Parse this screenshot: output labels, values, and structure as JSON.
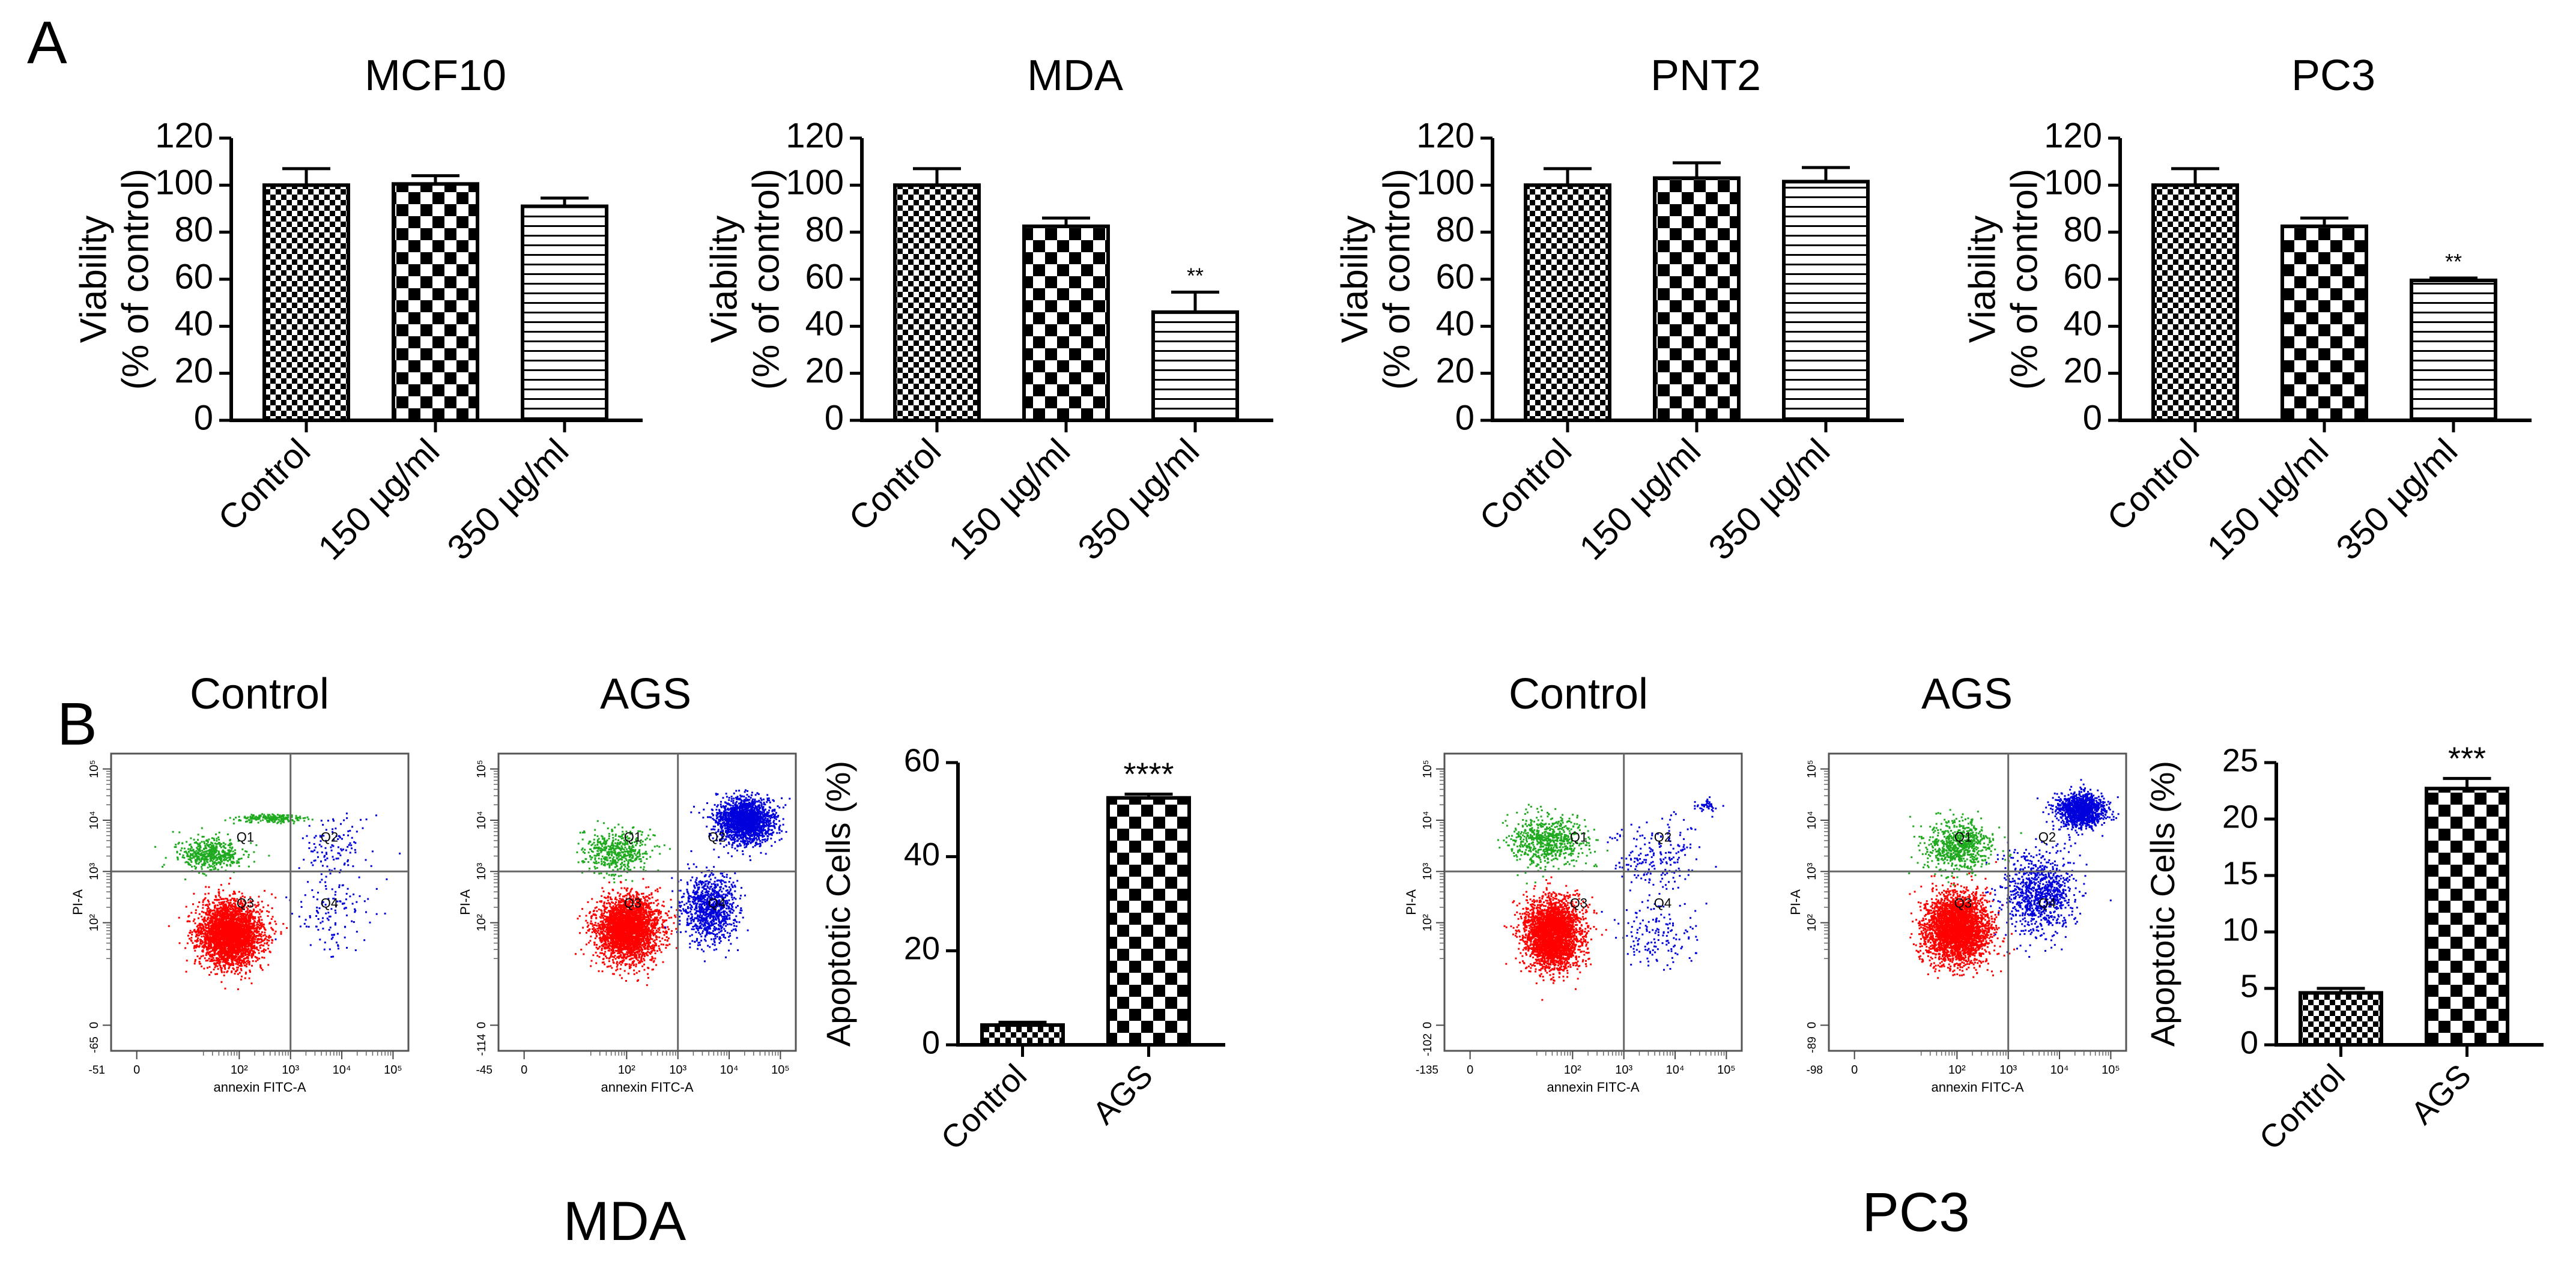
{
  "panel_labels": {
    "a": "A",
    "b": "B"
  },
  "cell_labels": {
    "mda": "MDA",
    "pc3": "PC3"
  },
  "colors": {
    "red": "#ff0000",
    "green": "#1faa1f",
    "blue": "#0000dd",
    "grid": "#666666"
  },
  "chart_data": [
    {
      "id": "mcf10",
      "type": "bar",
      "title": "MCF10",
      "ylabel": [
        "Viability",
        "(% of control)"
      ],
      "categories": [
        "Control",
        "150 µg/ml",
        "350 µg/ml"
      ],
      "values": [
        100,
        100.5,
        91
      ],
      "errors": [
        7,
        3.5,
        3.5
      ],
      "patterns": [
        "fine-check",
        "check",
        "hlines"
      ],
      "significance": [
        "",
        "",
        ""
      ],
      "ylim": [
        0,
        120
      ],
      "yticks": [
        0,
        20,
        40,
        60,
        80,
        100,
        120
      ]
    },
    {
      "id": "mda",
      "type": "bar",
      "title": "MDA",
      "ylabel": [
        "Viability",
        "(% of control)"
      ],
      "categories": [
        "Control",
        "150 µg/ml",
        "350 µg/ml"
      ],
      "values": [
        100,
        82.5,
        46
      ],
      "errors": [
        7,
        3.5,
        8.5
      ],
      "patterns": [
        "fine-check",
        "check",
        "hlines"
      ],
      "significance": [
        "",
        "",
        "**"
      ],
      "ylim": [
        0,
        120
      ],
      "yticks": [
        0,
        20,
        40,
        60,
        80,
        100,
        120
      ]
    },
    {
      "id": "pnt2",
      "type": "bar",
      "title": "PNT2",
      "ylabel": [
        "Viability",
        "(% of control)"
      ],
      "categories": [
        "Control",
        "150 µg/ml",
        "350 µg/ml"
      ],
      "values": [
        100,
        103,
        101.5
      ],
      "errors": [
        7,
        6.5,
        6
      ],
      "patterns": [
        "fine-check",
        "check",
        "hlines"
      ],
      "significance": [
        "",
        "",
        ""
      ],
      "ylim": [
        0,
        120
      ],
      "yticks": [
        0,
        20,
        40,
        60,
        80,
        100,
        120
      ]
    },
    {
      "id": "pc3",
      "type": "bar",
      "title": "PC3",
      "ylabel": [
        "Viability",
        "(% of control)"
      ],
      "categories": [
        "Control",
        "150 µg/ml",
        "350 µg/ml"
      ],
      "values": [
        100,
        82.5,
        59.5
      ],
      "errors": [
        7,
        3.5,
        1
      ],
      "patterns": [
        "fine-check",
        "check",
        "hlines"
      ],
      "significance": [
        "",
        "",
        "**"
      ],
      "ylim": [
        0,
        120
      ],
      "yticks": [
        0,
        20,
        40,
        60,
        80,
        100,
        120
      ]
    },
    {
      "id": "mda-apoptosis",
      "type": "bar",
      "ylabel": [
        "Apoptotic Cells (%)"
      ],
      "categories": [
        "Control",
        "AGS"
      ],
      "values": [
        4.2,
        52.5
      ],
      "errors": [
        0.6,
        0.8
      ],
      "patterns": [
        "fine-check",
        "check"
      ],
      "significance": [
        "",
        "****"
      ],
      "ylim": [
        0,
        60
      ],
      "yticks": [
        0,
        20,
        40,
        60
      ]
    },
    {
      "id": "pc3-apoptosis",
      "type": "bar",
      "ylabel": [
        "Apoptotic Cells (%)"
      ],
      "categories": [
        "Control",
        "AGS"
      ],
      "values": [
        4.6,
        22.7
      ],
      "errors": [
        0.4,
        0.9
      ],
      "patterns": [
        "fine-check",
        "check"
      ],
      "significance": [
        "",
        "***"
      ],
      "ylim": [
        0,
        25
      ],
      "yticks": [
        0,
        5,
        10,
        15,
        20,
        25
      ]
    },
    {
      "id": "flow-mda-control",
      "type": "scatter",
      "title": "Control",
      "xlabel": "annexin FITC-A",
      "ylabel": "PI-A",
      "quadrants": [
        "Q1",
        "Q2",
        "Q3",
        "Q4"
      ],
      "x_min_label": "-51",
      "y_min_label": "-65",
      "xticks": [
        "0",
        "10²",
        "10³",
        "10⁴",
        "10⁵"
      ],
      "yticks": [
        "0",
        "10²",
        "10³",
        "10⁴",
        "10⁵"
      ],
      "populations": [
        {
          "color": "red",
          "cx": 1.8,
          "cy": 1.8,
          "sx": 0.55,
          "sy": 0.55,
          "n": 3200
        },
        {
          "color": "green",
          "cx": 1.4,
          "cy": 3.35,
          "sx": 0.55,
          "sy": 0.25,
          "n": 500
        },
        {
          "color": "green",
          "cx": 2.6,
          "cy": 4.05,
          "sx": 0.6,
          "sy": 0.07,
          "n": 200
        },
        {
          "color": "blue",
          "cx": 3.9,
          "cy": 3.5,
          "sx": 0.7,
          "sy": 0.6,
          "n": 120
        },
        {
          "color": "blue",
          "cx": 3.8,
          "cy": 2.2,
          "sx": 0.7,
          "sy": 0.7,
          "n": 120
        }
      ]
    },
    {
      "id": "flow-mda-ags",
      "type": "scatter",
      "title": "AGS",
      "xlabel": "annexin FITC-A",
      "ylabel": "PI-A",
      "quadrants": [
        "Q1",
        "Q2",
        "Q3",
        "Q4"
      ],
      "x_min_label": "-45",
      "y_min_label": "-114",
      "xticks": [
        "0",
        "10²",
        "10³",
        "10⁴",
        "10⁵"
      ],
      "yticks": [
        "0",
        "10²",
        "10³",
        "10⁴",
        "10⁵"
      ],
      "populations": [
        {
          "color": "red",
          "cx": 2.0,
          "cy": 1.9,
          "sx": 0.55,
          "sy": 0.55,
          "n": 3000
        },
        {
          "color": "blue",
          "cx": 4.3,
          "cy": 4.0,
          "sx": 0.5,
          "sy": 0.4,
          "n": 1800
        },
        {
          "color": "blue",
          "cx": 3.6,
          "cy": 2.3,
          "sx": 0.5,
          "sy": 0.6,
          "n": 900
        },
        {
          "color": "green",
          "cx": 1.8,
          "cy": 3.4,
          "sx": 0.6,
          "sy": 0.4,
          "n": 500
        }
      ]
    },
    {
      "id": "flow-pc3-control",
      "type": "scatter",
      "title": "Control",
      "xlabel": "annexin FITC-A",
      "ylabel": "PI-A",
      "quadrants": [
        "Q1",
        "Q2",
        "Q3",
        "Q4"
      ],
      "x_min_label": "-135",
      "y_min_label": "-102",
      "xticks": [
        "0",
        "10²",
        "10³",
        "10⁴",
        "10⁵"
      ],
      "yticks": [
        "0",
        "10²",
        "10³",
        "10⁴",
        "10⁵"
      ],
      "populations": [
        {
          "color": "red",
          "cx": 1.6,
          "cy": 1.8,
          "sx": 0.5,
          "sy": 0.6,
          "n": 3000
        },
        {
          "color": "green",
          "cx": 1.5,
          "cy": 3.6,
          "sx": 0.7,
          "sy": 0.45,
          "n": 650
        },
        {
          "color": "blue",
          "cx": 3.6,
          "cy": 3.3,
          "sx": 0.8,
          "sy": 0.6,
          "n": 200
        },
        {
          "color": "blue",
          "cx": 3.6,
          "cy": 1.8,
          "sx": 0.7,
          "sy": 0.6,
          "n": 150
        },
        {
          "color": "blue",
          "cx": 4.6,
          "cy": 4.3,
          "sx": 0.2,
          "sy": 0.15,
          "n": 40
        }
      ]
    },
    {
      "id": "flow-pc3-ags",
      "type": "scatter",
      "title": "AGS",
      "xlabel": "annexin FITC-A",
      "ylabel": "PI-A",
      "quadrants": [
        "Q1",
        "Q2",
        "Q3",
        "Q4"
      ],
      "x_min_label": "-98",
      "y_min_label": "-89",
      "xticks": [
        "0",
        "10²",
        "10³",
        "10⁴",
        "10⁵"
      ],
      "yticks": [
        "0",
        "10²",
        "10³",
        "10⁴",
        "10⁵"
      ],
      "populations": [
        {
          "color": "red",
          "cx": 2.0,
          "cy": 1.9,
          "sx": 0.55,
          "sy": 0.6,
          "n": 3200
        },
        {
          "color": "blue",
          "cx": 4.4,
          "cy": 4.2,
          "sx": 0.4,
          "sy": 0.3,
          "n": 1200
        },
        {
          "color": "blue",
          "cx": 3.6,
          "cy": 2.6,
          "sx": 0.6,
          "sy": 0.7,
          "n": 900
        },
        {
          "color": "green",
          "cx": 2.0,
          "cy": 3.5,
          "sx": 0.6,
          "sy": 0.45,
          "n": 700
        }
      ]
    }
  ]
}
